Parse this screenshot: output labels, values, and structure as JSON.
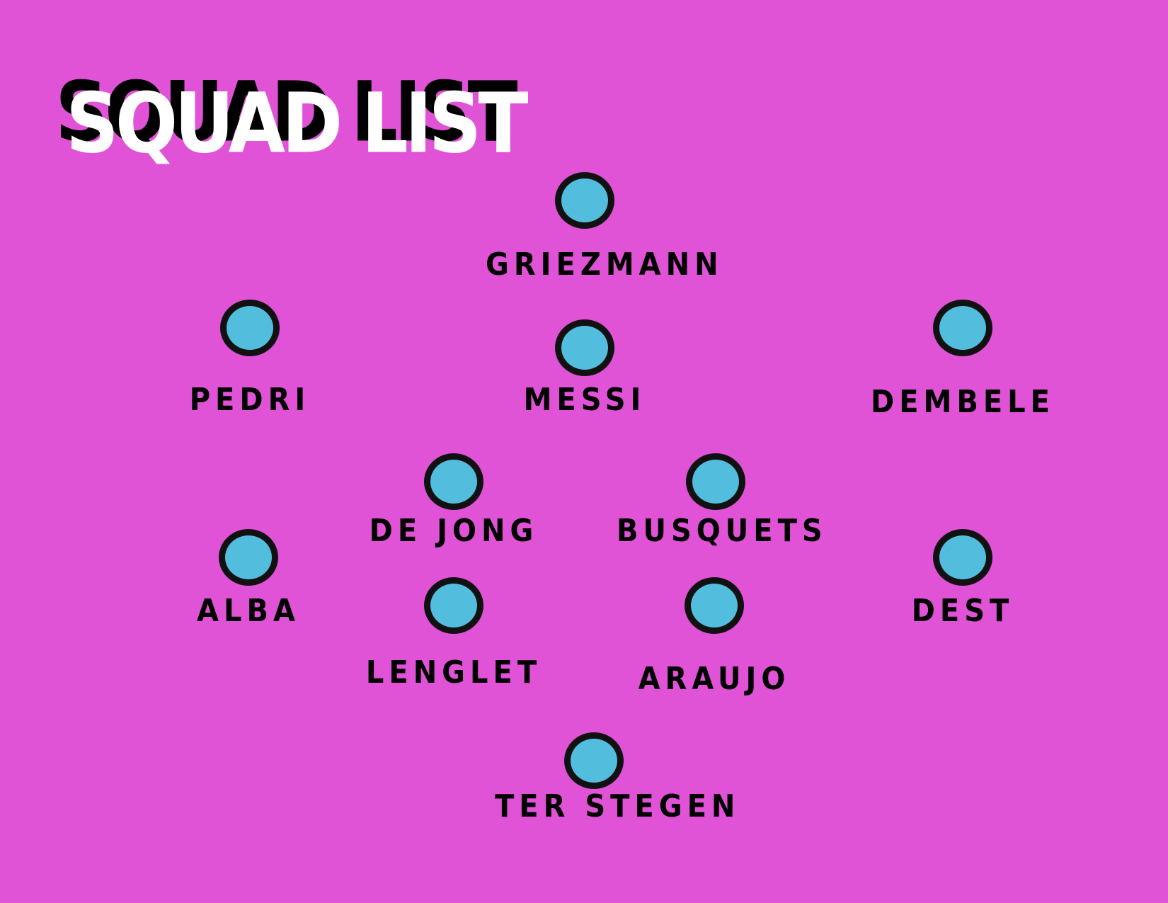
{
  "colors": {
    "background": "#e052d6",
    "dot_fill": "#52bddd",
    "dot_border": "#111111",
    "title": "#ffffff",
    "title_shadow": "#000000",
    "label": "#000000"
  },
  "title": "SQUAD LIST",
  "players": [
    {
      "name": "GRIEZMANN"
    },
    {
      "name": "PEDRI"
    },
    {
      "name": "MESSI"
    },
    {
      "name": "DEMBELE"
    },
    {
      "name": "DE JONG"
    },
    {
      "name": "BUSQUETS"
    },
    {
      "name": "ALBA"
    },
    {
      "name": "LENGLET"
    },
    {
      "name": "ARAUJO"
    },
    {
      "name": "DEST"
    },
    {
      "name": "TER STEGEN"
    }
  ]
}
